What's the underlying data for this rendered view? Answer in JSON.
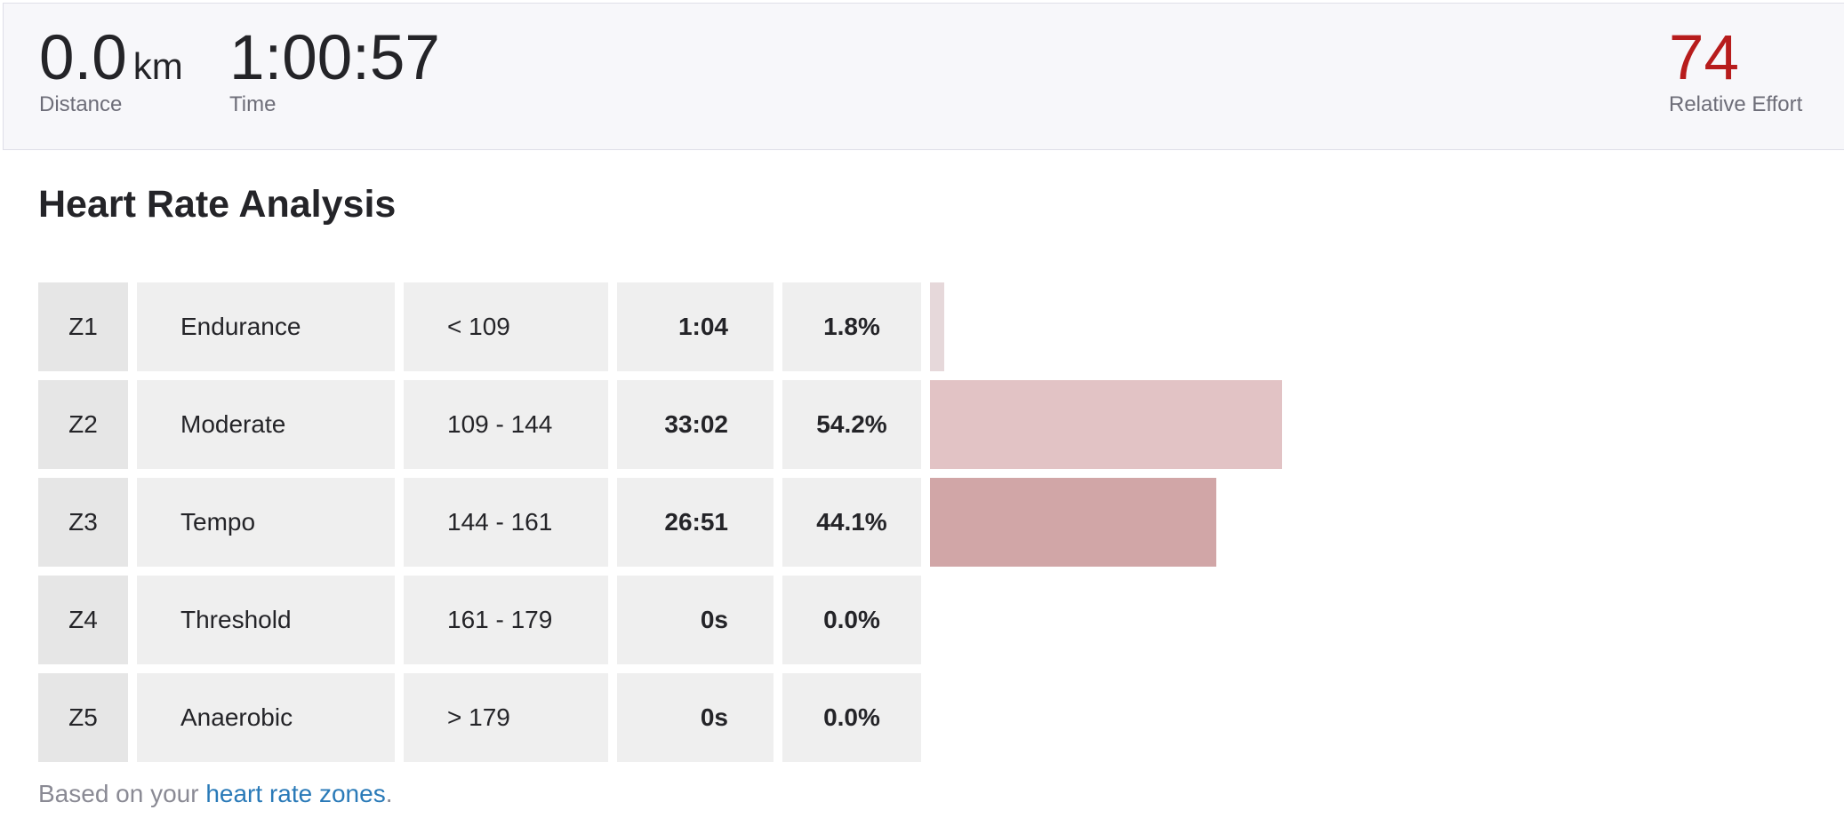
{
  "stats": {
    "distance": {
      "value": "0.0",
      "unit": "km",
      "label": "Distance"
    },
    "time": {
      "value": "1:00:57",
      "label": "Time"
    },
    "relative_effort": {
      "value": "74",
      "label": "Relative Effort",
      "color": "#b71c1c"
    }
  },
  "heart_rate_analysis": {
    "title": "Heart Rate Analysis",
    "zones": [
      {
        "zone": "Z1",
        "name": "Endurance",
        "range": "< 109",
        "time": "1:04",
        "percent": "1.8%",
        "fraction": 0.018,
        "color": "#e6d8da"
      },
      {
        "zone": "Z2",
        "name": "Moderate",
        "range": "109 - 144",
        "time": "33:02",
        "percent": "54.2%",
        "fraction": 0.542,
        "color": "#e2c3c5"
      },
      {
        "zone": "Z3",
        "name": "Tempo",
        "range": "144 - 161",
        "time": "26:51",
        "percent": "44.1%",
        "fraction": 0.441,
        "color": "#d1a6a7"
      },
      {
        "zone": "Z4",
        "name": "Threshold",
        "range": "161 - 179",
        "time": "0s",
        "percent": "0.0%",
        "fraction": 0.0,
        "color": "#c98b8d"
      },
      {
        "zone": "Z5",
        "name": "Anaerobic",
        "range": "> 179",
        "time": "0s",
        "percent": "0.0%",
        "fraction": 0.0,
        "color": "#c07072"
      }
    ],
    "footnote": {
      "prefix": "Based on your ",
      "link_text": "heart rate zones",
      "suffix": "."
    }
  }
}
